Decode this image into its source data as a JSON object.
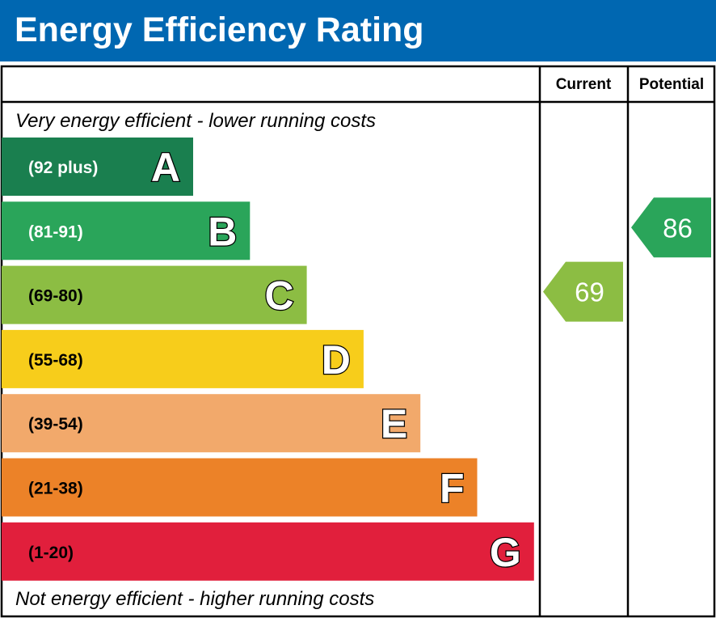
{
  "chart_data": {
    "type": "bar",
    "title": "Energy Efficiency Rating",
    "columns": {
      "current": "Current",
      "potential": "Potential"
    },
    "top_caption": "Very energy efficient - lower running costs",
    "bottom_caption": "Not energy efficient - higher running costs",
    "bands": [
      {
        "letter": "A",
        "range": "(92 plus)",
        "min": 92,
        "max": 100,
        "color": "#1a7f4f",
        "range_text_color": "#ffffff"
      },
      {
        "letter": "B",
        "range": "(81-91)",
        "min": 81,
        "max": 91,
        "color": "#2aa55a",
        "range_text_color": "#ffffff"
      },
      {
        "letter": "C",
        "range": "(69-80)",
        "min": 69,
        "max": 80,
        "color": "#8cbd43",
        "range_text_color": "#000000"
      },
      {
        "letter": "D",
        "range": "(55-68)",
        "min": 55,
        "max": 68,
        "color": "#f7cd1b",
        "range_text_color": "#000000"
      },
      {
        "letter": "E",
        "range": "(39-54)",
        "min": 39,
        "max": 54,
        "color": "#f2a96b",
        "range_text_color": "#000000"
      },
      {
        "letter": "F",
        "range": "(21-38)",
        "min": 21,
        "max": 38,
        "color": "#ec8228",
        "range_text_color": "#000000"
      },
      {
        "letter": "G",
        "range": "(1-20)",
        "min": 1,
        "max": 20,
        "color": "#e11f3c",
        "range_text_color": "#000000"
      }
    ],
    "ratings": {
      "current": {
        "value": 69,
        "band": "C"
      },
      "potential": {
        "value": 86,
        "band": "B"
      }
    },
    "colors": {
      "header": "#0067b1",
      "border": "#000000"
    }
  }
}
